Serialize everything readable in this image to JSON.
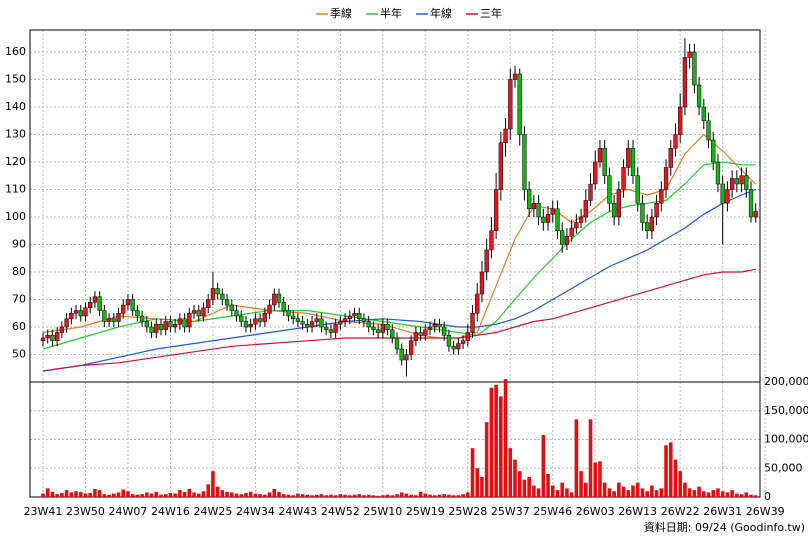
{
  "chart_data": {
    "type": "candlestick",
    "categories": [
      "23W41",
      null,
      null,
      null,
      null,
      null,
      null,
      null,
      null,
      "23W50",
      null,
      null,
      null,
      null,
      null,
      null,
      null,
      null,
      "24W07",
      null,
      null,
      null,
      null,
      null,
      null,
      null,
      null,
      "24W16",
      null,
      null,
      null,
      null,
      null,
      null,
      null,
      null,
      "24W25",
      null,
      null,
      null,
      null,
      null,
      null,
      null,
      null,
      "24W34",
      null,
      null,
      null,
      null,
      null,
      null,
      null,
      null,
      "24W43",
      null,
      null,
      null,
      null,
      null,
      null,
      null,
      null,
      "24W52",
      null,
      null,
      null,
      null,
      null,
      null,
      null,
      null,
      "25W10",
      null,
      null,
      null,
      null,
      null,
      null,
      null,
      null,
      "25W19",
      null,
      null,
      null,
      null,
      null,
      null,
      null,
      null,
      "25W28",
      null,
      null,
      null,
      null,
      null,
      null,
      null,
      null,
      "25W37",
      null,
      null,
      null,
      null,
      null,
      null,
      null,
      null,
      "25W46",
      null,
      null,
      null,
      null,
      null,
      null,
      null,
      null,
      "26W03",
      null,
      null,
      null,
      null,
      null,
      null,
      null,
      null,
      "26W13",
      null,
      null,
      null,
      null,
      null,
      null,
      null,
      null,
      "26W22",
      null,
      null,
      null,
      null,
      null,
      null,
      null,
      null,
      "26W31",
      null,
      null,
      null,
      null,
      null,
      null,
      null,
      null,
      "26W39"
    ],
    "open": [
      55,
      56,
      57,
      55,
      58,
      60,
      63,
      65,
      66,
      64,
      67,
      69,
      71,
      66,
      62,
      63,
      62,
      65,
      68,
      70,
      66,
      64,
      62,
      60,
      58,
      61,
      59,
      62,
      60,
      61,
      63,
      60,
      65,
      66,
      64,
      67,
      70,
      74,
      72,
      70,
      68,
      66,
      64,
      62,
      60,
      61,
      63,
      62,
      65,
      68,
      72,
      69,
      66,
      64,
      63,
      62,
      61,
      60,
      62,
      63,
      60,
      59,
      58,
      61,
      62,
      63,
      64,
      65,
      63,
      62,
      60,
      59,
      58,
      61,
      59,
      56,
      52,
      48,
      50,
      55,
      58,
      57,
      59,
      60,
      61,
      60,
      57,
      53,
      52,
      54,
      55,
      58,
      65,
      72,
      80,
      88,
      95,
      110,
      127,
      132,
      150,
      152,
      130,
      110,
      103,
      105,
      100,
      98,
      101,
      103,
      95,
      90,
      93,
      96,
      98,
      100,
      106,
      112,
      120,
      125,
      115,
      105,
      100,
      110,
      118,
      125,
      115,
      105,
      98,
      95,
      100,
      105,
      110,
      118,
      125,
      130,
      140,
      158,
      160,
      148,
      140,
      135,
      128,
      120,
      112,
      105,
      110,
      114,
      112,
      115,
      110,
      100,
      null,
      null
    ],
    "high": [
      58,
      59,
      59,
      60,
      62,
      65,
      67,
      68,
      68,
      69,
      71,
      73,
      73,
      68,
      65,
      65,
      67,
      70,
      72,
      72,
      68,
      66,
      64,
      62,
      63,
      63,
      64,
      64,
      63,
      65,
      65,
      67,
      68,
      68,
      69,
      72,
      80,
      76,
      74,
      72,
      70,
      68,
      66,
      64,
      63,
      65,
      65,
      67,
      70,
      74,
      74,
      71,
      68,
      66,
      65,
      64,
      63,
      64,
      65,
      65,
      62,
      61,
      63,
      64,
      65,
      66,
      67,
      67,
      65,
      64,
      62,
      61,
      63,
      63,
      61,
      58,
      54,
      52,
      57,
      60,
      60,
      61,
      62,
      63,
      63,
      62,
      59,
      55,
      56,
      57,
      61,
      68,
      76,
      84,
      92,
      100,
      116,
      131,
      136,
      154,
      155,
      154,
      133,
      113,
      108,
      108,
      103,
      104,
      106,
      106,
      98,
      96,
      99,
      101,
      103,
      110,
      116,
      124,
      128,
      128,
      118,
      108,
      113,
      121,
      128,
      128,
      118,
      108,
      101,
      103,
      108,
      113,
      121,
      128,
      134,
      145,
      165,
      163,
      163,
      151,
      143,
      138,
      131,
      123,
      115,
      113,
      117,
      117,
      118,
      118,
      113,
      105,
      null,
      null
    ],
    "low": [
      53,
      54,
      53,
      53,
      56,
      58,
      61,
      63,
      62,
      62,
      65,
      67,
      64,
      60,
      60,
      60,
      60,
      63,
      66,
      64,
      62,
      60,
      58,
      56,
      56,
      57,
      57,
      58,
      58,
      59,
      58,
      58,
      63,
      62,
      62,
      65,
      68,
      70,
      68,
      66,
      64,
      62,
      60,
      58,
      58,
      59,
      60,
      60,
      63,
      66,
      67,
      64,
      62,
      61,
      60,
      59,
      58,
      58,
      60,
      58,
      57,
      56,
      56,
      59,
      60,
      61,
      62,
      61,
      60,
      58,
      57,
      56,
      56,
      57,
      54,
      50,
      46,
      42,
      48,
      53,
      55,
      55,
      57,
      58,
      58,
      55,
      51,
      50,
      50,
      52,
      53,
      56,
      62,
      69,
      77,
      85,
      92,
      106,
      122,
      128,
      147,
      126,
      106,
      100,
      100,
      97,
      95,
      95,
      98,
      92,
      87,
      88,
      91,
      94,
      96,
      98,
      104,
      110,
      118,
      112,
      102,
      97,
      97,
      107,
      115,
      112,
      102,
      95,
      92,
      92,
      97,
      102,
      107,
      115,
      122,
      127,
      137,
      154,
      145,
      137,
      132,
      125,
      117,
      109,
      90,
      102,
      107,
      109,
      109,
      107,
      98,
      98,
      null,
      null
    ],
    "close": [
      56,
      57,
      55,
      58,
      60,
      63,
      65,
      66,
      64,
      67,
      69,
      71,
      66,
      62,
      63,
      62,
      65,
      68,
      70,
      66,
      64,
      62,
      60,
      58,
      61,
      59,
      62,
      60,
      61,
      63,
      60,
      65,
      66,
      64,
      67,
      70,
      74,
      72,
      70,
      68,
      66,
      64,
      62,
      60,
      61,
      63,
      62,
      65,
      68,
      72,
      69,
      66,
      64,
      63,
      62,
      61,
      60,
      62,
      63,
      60,
      59,
      58,
      61,
      62,
      63,
      64,
      65,
      63,
      62,
      60,
      59,
      58,
      61,
      59,
      56,
      52,
      48,
      50,
      55,
      58,
      57,
      59,
      60,
      61,
      60,
      57,
      53,
      52,
      54,
      55,
      58,
      65,
      72,
      80,
      88,
      95,
      110,
      127,
      132,
      150,
      152,
      130,
      110,
      103,
      105,
      100,
      98,
      101,
      103,
      95,
      90,
      93,
      96,
      98,
      100,
      106,
      112,
      120,
      125,
      115,
      105,
      100,
      110,
      118,
      125,
      115,
      105,
      98,
      95,
      100,
      105,
      110,
      118,
      125,
      130,
      140,
      158,
      160,
      148,
      140,
      135,
      128,
      120,
      112,
      105,
      110,
      114,
      112,
      115,
      110,
      100,
      102,
      null,
      null
    ],
    "up_color": "#e8141e",
    "down_color": "#14b414",
    "ylim": [
      40,
      168
    ],
    "yticks": [
      50,
      60,
      70,
      80,
      90,
      100,
      110,
      120,
      130,
      140,
      150,
      160
    ],
    "grid": true,
    "ma": [
      {
        "name": "季線",
        "color": "#f07820",
        "x": [
          0,
          8,
          16,
          24,
          32,
          40,
          48,
          56,
          64,
          72,
          80,
          84,
          88,
          92,
          96,
          100,
          104,
          108,
          112,
          116,
          120,
          124,
          128,
          132,
          136,
          140,
          144,
          148,
          151
        ],
        "values": [
          58,
          60,
          64,
          63,
          62,
          68,
          66,
          65,
          62,
          61,
          57,
          56,
          56,
          58,
          75,
          92,
          104,
          103,
          98,
          102,
          108,
          110,
          108,
          110,
          123,
          130,
          124,
          117,
          112
        ]
      },
      {
        "name": "半年",
        "color": "#28c828",
        "x": [
          0,
          8,
          16,
          24,
          32,
          40,
          48,
          56,
          64,
          72,
          80,
          84,
          88,
          92,
          96,
          100,
          104,
          108,
          112,
          116,
          120,
          124,
          128,
          132,
          136,
          140,
          144,
          148,
          151
        ],
        "values": [
          52,
          56,
          60,
          63,
          62,
          64,
          66,
          66,
          64,
          62,
          60,
          59,
          58,
          57,
          62,
          70,
          78,
          85,
          92,
          98,
          102,
          104,
          105,
          106,
          112,
          119,
          120,
          119,
          119
        ]
      },
      {
        "name": "年線",
        "color": "#1e5ad2",
        "x": [
          0,
          8,
          16,
          24,
          32,
          40,
          48,
          56,
          64,
          72,
          80,
          84,
          88,
          92,
          96,
          100,
          104,
          108,
          112,
          116,
          120,
          124,
          128,
          132,
          136,
          140,
          144,
          148,
          151
        ],
        "values": [
          44,
          46,
          49,
          52,
          54,
          56,
          58,
          60,
          62,
          63,
          62,
          61,
          60,
          60,
          61,
          63,
          66,
          70,
          74,
          78,
          82,
          85,
          88,
          92,
          96,
          101,
          105,
          108,
          110
        ]
      },
      {
        "name": "三年",
        "color": "#c8143c",
        "x": [
          0,
          8,
          16,
          24,
          32,
          40,
          48,
          56,
          64,
          72,
          80,
          84,
          88,
          92,
          96,
          100,
          104,
          108,
          112,
          116,
          120,
          124,
          128,
          132,
          136,
          140,
          144,
          148,
          151
        ],
        "values": [
          44,
          46,
          47,
          49,
          51,
          53,
          54,
          55,
          56,
          56,
          56,
          56,
          56,
          57,
          58,
          60,
          62,
          63,
          65,
          67,
          69,
          71,
          73,
          75,
          77,
          79,
          80,
          80,
          81
        ]
      }
    ],
    "volume": {
      "color": "#e01010",
      "values": [
        6000,
        15000,
        9000,
        5000,
        7000,
        12000,
        8000,
        10000,
        9000,
        6000,
        7000,
        14000,
        12000,
        5000,
        4000,
        6000,
        8000,
        13000,
        10000,
        5000,
        4000,
        5000,
        8000,
        6000,
        9000,
        4000,
        5000,
        7000,
        6000,
        12000,
        9000,
        14000,
        8000,
        6000,
        10000,
        22000,
        45000,
        18000,
        12000,
        9000,
        8000,
        6000,
        5000,
        7000,
        9000,
        6000,
        5000,
        4000,
        8000,
        14000,
        9000,
        5000,
        4000,
        3000,
        6000,
        5000,
        4000,
        3000,
        4000,
        5000,
        3000,
        4000,
        3000,
        5000,
        4000,
        3000,
        4000,
        5000,
        3000,
        4000,
        3000,
        2000,
        3000,
        4000,
        3000,
        5000,
        8000,
        6000,
        4000,
        3000,
        9000,
        6000,
        4000,
        3000,
        4000,
        5000,
        4000,
        3000,
        3000,
        5000,
        8000,
        85000,
        50000,
        35000,
        130000,
        190000,
        195000,
        175000,
        205000,
        85000,
        65000,
        45000,
        30000,
        35000,
        20000,
        15000,
        108000,
        40000,
        20000,
        12000,
        25000,
        15000,
        8000,
        135000,
        45000,
        25000,
        135000,
        60000,
        62000,
        25000,
        15000,
        10000,
        25000,
        18000,
        12000,
        20000,
        25000,
        15000,
        10000,
        20000,
        12000,
        15000,
        90000,
        95000,
        65000,
        45000,
        25000,
        15000,
        12000,
        18000,
        10000,
        8000,
        12000,
        15000,
        10000,
        8000,
        12000,
        6000,
        5000,
        8000,
        4000,
        3000,
        null,
        null
      ],
      "ylim": [
        0,
        200000
      ],
      "yticks": [
        0,
        {
          "value": 50000,
          "label": "50,000"
        },
        {
          "value": 100000,
          "label": "100,000"
        },
        {
          "value": 150000,
          "label": "150,000"
        },
        {
          "value": 200000,
          "label": "200,000"
        }
      ]
    }
  },
  "footer": "資料日期: 09/24 (Goodinfo.tw)"
}
